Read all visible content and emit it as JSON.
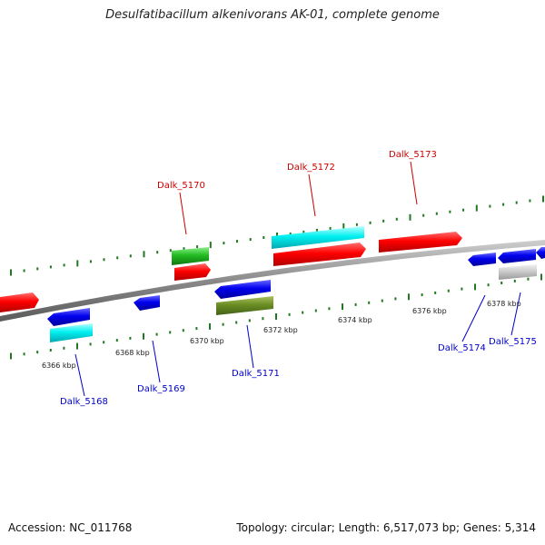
{
  "title": "Desulfatibacillum alkenivorans AK-01, complete genome",
  "footer": {
    "accession": "Accession: NC_011768",
    "summary": "Topology: circular; Length: 6,517,073 bp; Genes: 5,314"
  },
  "colors": {
    "forward_label": "#cc0000",
    "reverse_label": "#0000cc",
    "tick": "#227722",
    "backbone": "#888888"
  },
  "scale_labels": [
    "6366 kbp",
    "6368 kbp",
    "6370 kbp",
    "6372 kbp",
    "6374 kbp",
    "6376 kbp",
    "6378 kbp"
  ],
  "gene_labels": {
    "dalk_5168": "Dalk_5168",
    "dalk_5169": "Dalk_5169",
    "dalk_5170": "Dalk_5170",
    "dalk_5171": "Dalk_5171",
    "dalk_5172": "Dalk_5172",
    "dalk_5173": "Dalk_5173",
    "dalk_5174": "Dalk_5174",
    "dalk_5175": "Dalk_5175"
  }
}
